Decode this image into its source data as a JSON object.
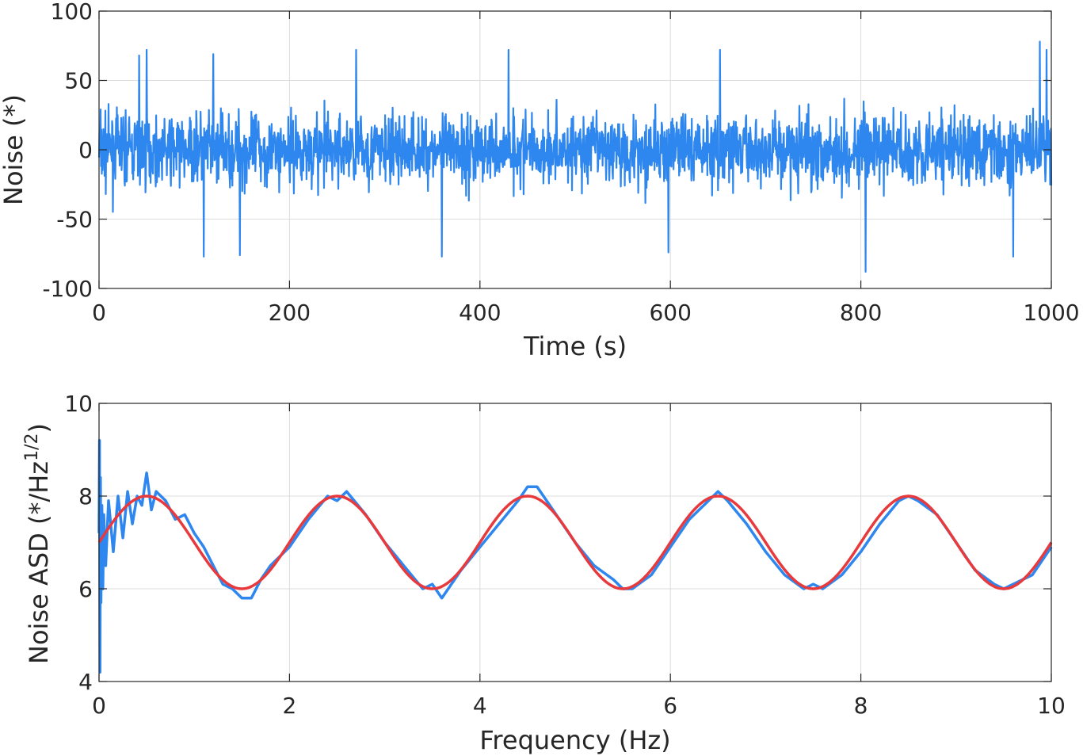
{
  "colors": {
    "measured": "#2e86ef",
    "model": "#e8393c"
  },
  "chart_data": [
    {
      "type": "line",
      "title": "",
      "xlabel": "Time (s)",
      "ylabel": "Noise (*)",
      "xlim": [
        0,
        1000
      ],
      "ylim": [
        -100,
        100
      ],
      "xticks": [
        "0",
        "200",
        "400",
        "600",
        "800",
        "1000"
      ],
      "yticks": [
        "-100",
        "-50",
        "0",
        "50",
        "100"
      ],
      "grid": true,
      "series": [
        {
          "color": "#2e86ef",
          "envelope": {
            "typical_min": -40,
            "typical_max": 40
          },
          "notable_peaks": [
            {
              "x": 42,
              "y": 68
            },
            {
              "x": 50,
              "y": 72
            },
            {
              "x": 110,
              "y": -77
            },
            {
              "x": 120,
              "y": 69
            },
            {
              "x": 148,
              "y": -76
            },
            {
              "x": 270,
              "y": 72
            },
            {
              "x": 360,
              "y": -77
            },
            {
              "x": 430,
              "y": 72
            },
            {
              "x": 598,
              "y": -74
            },
            {
              "x": 652,
              "y": 72
            },
            {
              "x": 805,
              "y": -88
            },
            {
              "x": 988,
              "y": 78
            },
            {
              "x": 995,
              "y": 72
            },
            {
              "x": 960,
              "y": -77
            }
          ]
        }
      ]
    },
    {
      "type": "line",
      "title": "",
      "xlabel": "Frequency (Hz)",
      "ylabel_main": "Noise ASD (*/Hz",
      "ylabel_sup": "1/2",
      "ylabel_end": ")",
      "xlim": [
        0,
        10
      ],
      "ylim": [
        4,
        10
      ],
      "xticks": [
        "0",
        "2",
        "4",
        "6",
        "8",
        "10"
      ],
      "yticks": [
        "4",
        "6",
        "8",
        "10"
      ],
      "grid": true,
      "series": [
        {
          "color": "#2e86ef",
          "x": [
            0,
            0.005,
            0.01,
            0.015,
            0.02,
            0.03,
            0.04,
            0.05,
            0.07,
            0.1,
            0.15,
            0.2,
            0.25,
            0.3,
            0.35,
            0.4,
            0.45,
            0.5,
            0.55,
            0.6,
            0.7,
            0.8,
            0.9,
            1.0,
            1.1,
            1.2,
            1.3,
            1.4,
            1.5,
            1.6,
            1.7,
            1.8,
            1.9,
            2.0,
            2.2,
            2.4,
            2.5,
            2.6,
            2.8,
            3.0,
            3.2,
            3.4,
            3.5,
            3.6,
            3.8,
            4.0,
            4.2,
            4.4,
            4.5,
            4.6,
            4.8,
            5.0,
            5.2,
            5.4,
            5.5,
            5.6,
            5.8,
            6.0,
            6.2,
            6.4,
            6.5,
            6.6,
            6.8,
            7.0,
            7.2,
            7.4,
            7.5,
            7.6,
            7.8,
            8.0,
            8.2,
            8.4,
            8.5,
            8.6,
            8.8,
            9.0,
            9.2,
            9.4,
            9.5,
            9.6,
            9.8,
            10.0
          ],
          "y": [
            7.2,
            9.2,
            4.2,
            8.4,
            5.7,
            7.8,
            6.0,
            7.6,
            6.5,
            7.9,
            6.8,
            8.0,
            7.1,
            8.1,
            7.4,
            8.0,
            7.8,
            8.5,
            7.7,
            8.1,
            7.9,
            7.5,
            7.6,
            7.2,
            6.9,
            6.5,
            6.1,
            6.0,
            5.8,
            5.8,
            6.2,
            6.5,
            6.7,
            6.9,
            7.5,
            8.0,
            7.9,
            8.1,
            7.6,
            7.0,
            6.5,
            6.0,
            6.1,
            5.8,
            6.4,
            6.9,
            7.4,
            7.9,
            8.2,
            8.2,
            7.6,
            7.0,
            6.5,
            6.2,
            6.0,
            6.0,
            6.3,
            6.9,
            7.5,
            7.9,
            8.1,
            7.9,
            7.4,
            6.8,
            6.3,
            6.0,
            6.1,
            6.0,
            6.3,
            6.8,
            7.4,
            7.9,
            8.0,
            7.9,
            7.6,
            7.0,
            6.4,
            6.1,
            6.0,
            6.1,
            6.3,
            6.9
          ]
        },
        {
          "color": "#e8393c",
          "model": {
            "offset": 7,
            "amplitude": 1,
            "period": 2
          }
        }
      ]
    }
  ]
}
